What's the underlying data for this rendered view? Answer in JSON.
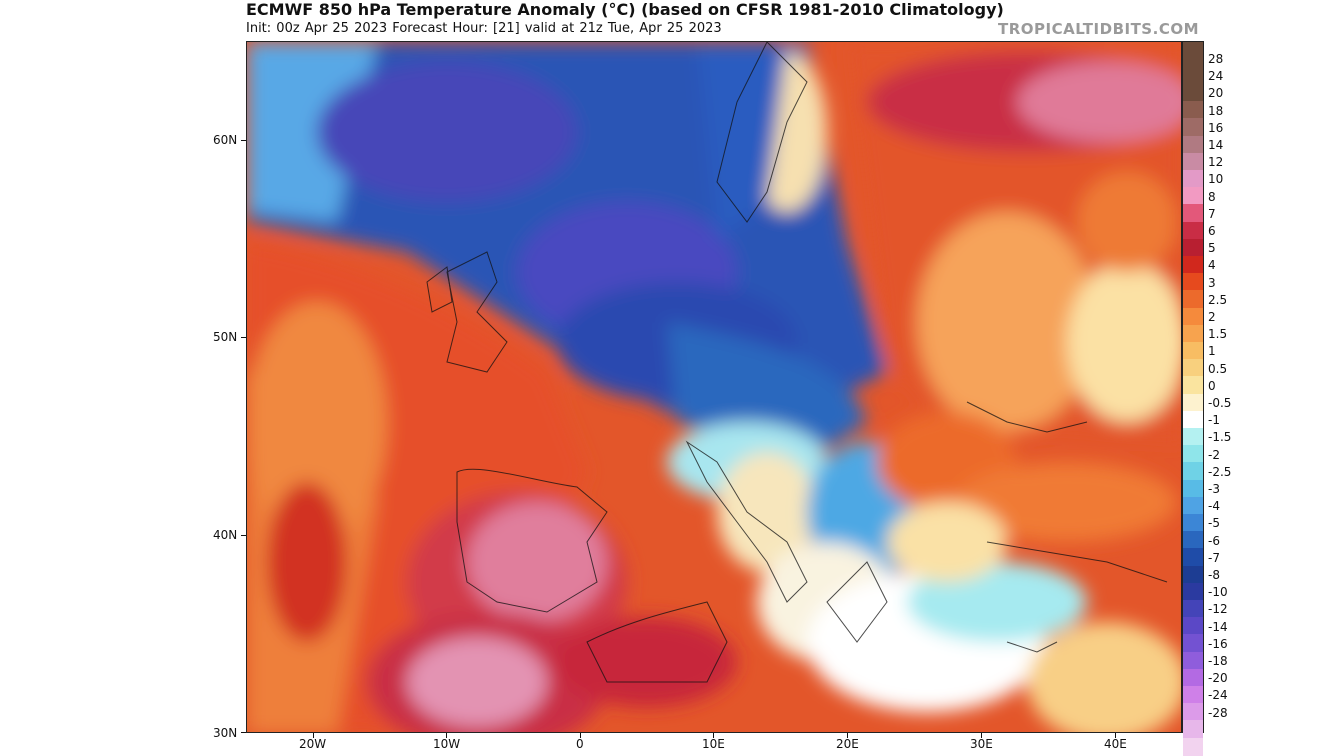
{
  "title": "ECMWF 850 hPa Temperature Anomaly (°C) (based on CFSR 1981-2010 Climatology)",
  "subtitle": "Init: 00z Apr 25 2023   Forecast Hour: [21]   valid at 21z Tue, Apr 25 2023",
  "brand": "TROPICALTIDBITS.COM",
  "axes": {
    "latitude_labels": [
      "60N",
      "50N",
      "40N",
      "30N"
    ],
    "longitude_labels": [
      "20W",
      "10W",
      "0",
      "10E",
      "20E",
      "30E",
      "40E"
    ]
  },
  "colorbar": {
    "labels": [
      "28",
      "24",
      "20",
      "18",
      "16",
      "14",
      "12",
      "10",
      "8",
      "7",
      "6",
      "5",
      "4",
      "3",
      "2.5",
      "2",
      "1.5",
      "1",
      "0.5",
      "0",
      "-0.5",
      "-1",
      "-1.5",
      "-2",
      "-2.5",
      "-3",
      "-4",
      "-5",
      "-6",
      "-7",
      "-8",
      "-10",
      "-12",
      "-14",
      "-16",
      "-18",
      "-20",
      "-24",
      "-28"
    ],
    "colors": [
      "#6b4b3a",
      "#8a5c4e",
      "#9e6b66",
      "#b07a82",
      "#c98ba4",
      "#e39ac7",
      "#f29ac2",
      "#e3587a",
      "#c92d45",
      "#b81f31",
      "#d1281d",
      "#e64a1e",
      "#ec6a2c",
      "#f58a3c",
      "#f7a34e",
      "#f8bd63",
      "#f8d07e",
      "#fae49f",
      "#fdf2cf",
      "#ffffff",
      "#b4f1f1",
      "#8fe5ea",
      "#6fd2e6",
      "#58bbe6",
      "#4fa3e4",
      "#3c86d6",
      "#2a67be",
      "#1f4ca8",
      "#1d3d93",
      "#2b3aa0",
      "#4444b8",
      "#5b48c6",
      "#7352d2",
      "#8f5ddc",
      "#b36ae3",
      "#cf80e8",
      "#dc9be9",
      "#e7b7ea",
      "#f2d3ef"
    ]
  }
}
